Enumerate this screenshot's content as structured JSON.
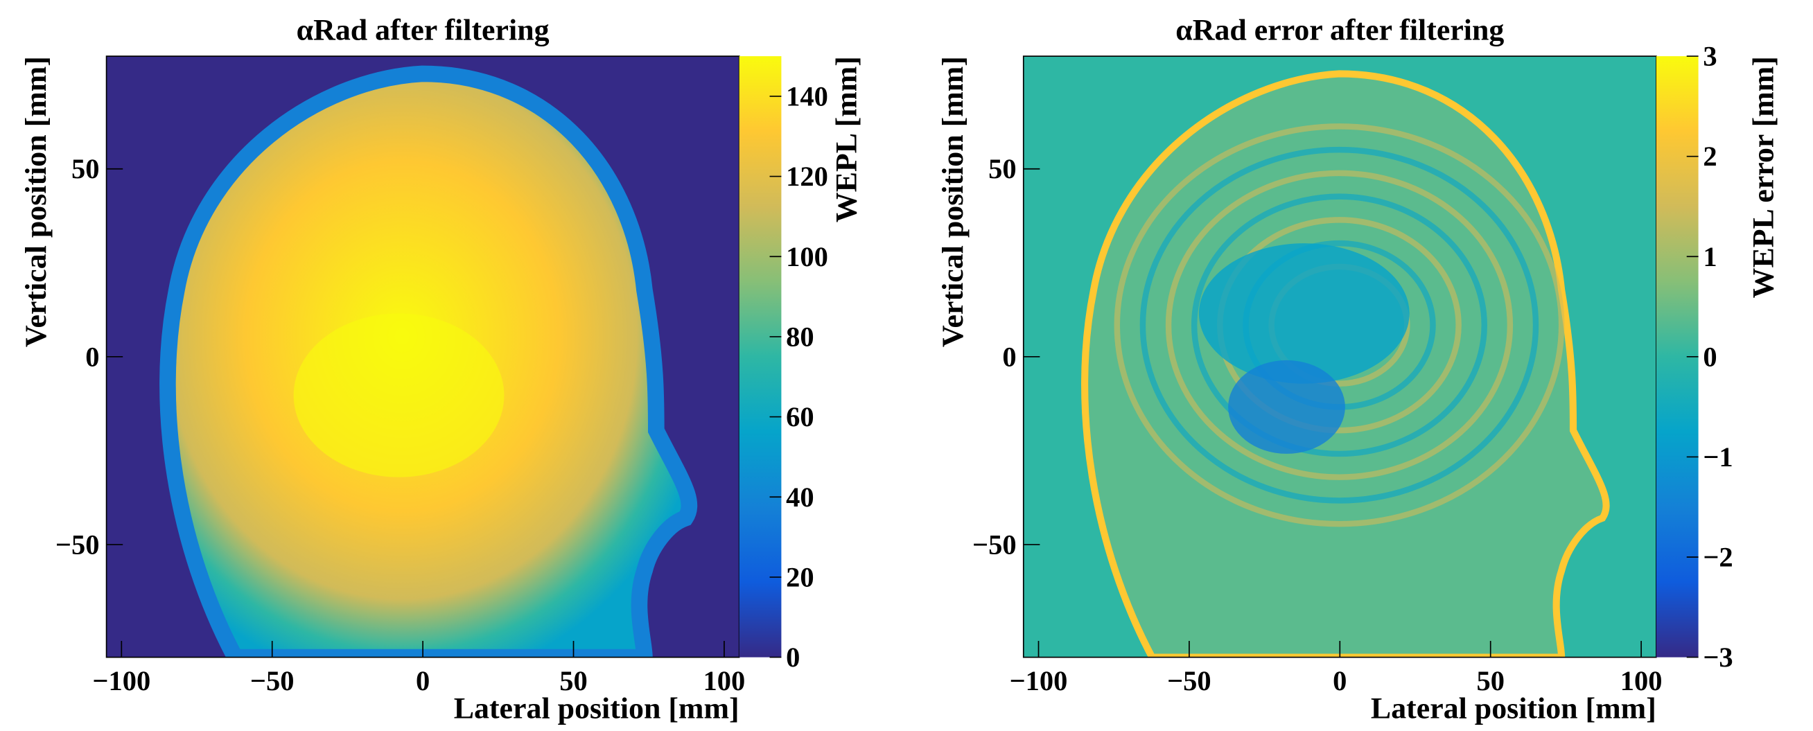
{
  "chart_data": [
    {
      "type": "heatmap",
      "title": "αRad after filtering",
      "x_label": "Lateral position [mm]",
      "y_label": "Vertical position [mm]",
      "colorbar_label": "WEPL [mm]",
      "xlim": [
        -105,
        105
      ],
      "ylim": [
        -80,
        80
      ],
      "xticks": [
        {
          "value": -100,
          "label": "−100"
        },
        {
          "value": -50,
          "label": "−50"
        },
        0,
        50,
        100
      ],
      "yticks": [
        {
          "value": -50,
          "label": "−50"
        },
        0,
        50
      ],
      "zlim": [
        0,
        150
      ],
      "zticks": [
        0,
        20,
        40,
        60,
        80,
        100,
        120,
        140
      ],
      "colormap": [
        "#352a87",
        "#0f5cdd",
        "#1481d6",
        "#06a4ca",
        "#2eb7a4",
        "#87bf77",
        "#d1bb59",
        "#fec832",
        "#f9fb0e"
      ]
    },
    {
      "type": "heatmap",
      "title": "αRad error after filtering",
      "x_label": "Lateral position [mm]",
      "y_label": "Vertical position [mm]",
      "colorbar_label": "WEPL error [mm]",
      "xlim": [
        -105,
        105
      ],
      "ylim": [
        -80,
        80
      ],
      "xticks": [
        {
          "value": -100,
          "label": "−100"
        },
        {
          "value": -50,
          "label": "−50"
        },
        0,
        50,
        100
      ],
      "yticks": [
        {
          "value": -50,
          "label": "−50"
        },
        0,
        50
      ],
      "zlim": [
        -3,
        3
      ],
      "zticks": [
        {
          "value": -3,
          "label": "−3"
        },
        {
          "value": -2,
          "label": "−2"
        },
        {
          "value": -1,
          "label": "−1"
        },
        0,
        1,
        2,
        3
      ],
      "colormap": [
        "#352a87",
        "#0f5cdd",
        "#1481d6",
        "#06a4ca",
        "#2eb7a4",
        "#87bf77",
        "#d1bb59",
        "#fec832",
        "#f9fb0e"
      ]
    }
  ]
}
